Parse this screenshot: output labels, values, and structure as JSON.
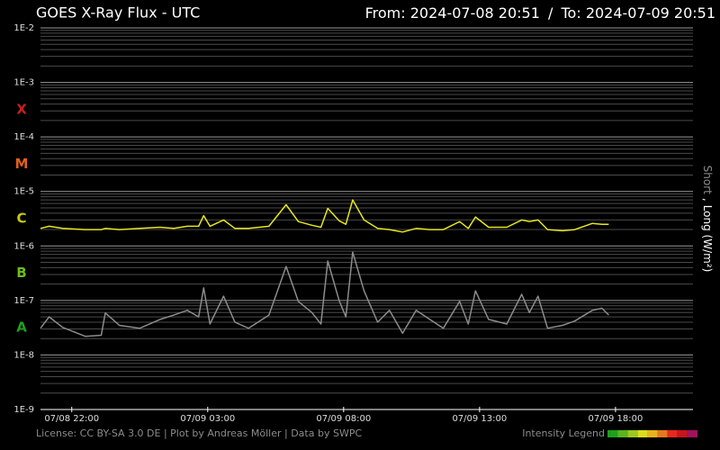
{
  "chart_data": {
    "type": "line",
    "title": "GOES X-Ray Flux - UTC",
    "from_label": "From:",
    "to_label": "To:",
    "range_separator": "/",
    "xlim": [
      "2024-07-08 20:51",
      "2024-07-09 20:51"
    ],
    "xticks": [
      {
        "value": "2024-07-08 22:00",
        "label": "07/08 22:00"
      },
      {
        "value": "2024-07-09 03:00",
        "label": "07/09 03:00"
      },
      {
        "value": "2024-07-09 08:00",
        "label": "07/09 08:00"
      },
      {
        "value": "2024-07-09 13:00",
        "label": "07/09 13:00"
      },
      {
        "value": "2024-07-09 18:00",
        "label": "07/09 18:00"
      }
    ],
    "log_scale": true,
    "grid": true,
    "ylim": [
      1e-09,
      0.01
    ],
    "yticks": [
      {
        "value": 1e-09,
        "label": "1E-9"
      },
      {
        "value": 1e-08,
        "label": "1E-8"
      },
      {
        "value": 1e-07,
        "label": "1E-7"
      },
      {
        "value": 1e-06,
        "label": "1E-6"
      },
      {
        "value": 1e-05,
        "label": "1E-5"
      },
      {
        "value": 0.0001,
        "label": "1E-4"
      },
      {
        "value": 0.001,
        "label": "1E-3"
      },
      {
        "value": 0.01,
        "label": "1E-2"
      }
    ],
    "flare_classes": [
      {
        "label": "A",
        "color": "#1fa01f"
      },
      {
        "label": "B",
        "color": "#6cbc1c"
      },
      {
        "label": "C",
        "color": "#c8c81c"
      },
      {
        "label": "M",
        "color": "#e0601a"
      },
      {
        "label": "X",
        "color": "#c81e1e"
      }
    ],
    "legend_separator": ",",
    "x": [
      "2024-07-08 20:51",
      "2024-07-08 21:10",
      "2024-07-08 21:40",
      "2024-07-08 22:30",
      "2024-07-08 23:05",
      "2024-07-08 23:14",
      "2024-07-08 23:45",
      "2024-07-09 00:30",
      "2024-07-09 01:15",
      "2024-07-09 01:45",
      "2024-07-09 02:15",
      "2024-07-09 02:40",
      "2024-07-09 02:51",
      "2024-07-09 03:05",
      "2024-07-09 03:35",
      "2024-07-09 04:00",
      "2024-07-09 04:30",
      "2024-07-09 05:15",
      "2024-07-09 05:53",
      "2024-07-09 06:20",
      "2024-07-09 06:50",
      "2024-07-09 07:10",
      "2024-07-09 07:25",
      "2024-07-09 07:50",
      "2024-07-09 08:05",
      "2024-07-09 08:20",
      "2024-07-09 08:45",
      "2024-07-09 09:15",
      "2024-07-09 09:41",
      "2024-07-09 10:10",
      "2024-07-09 10:40",
      "2024-07-09 11:10",
      "2024-07-09 11:40",
      "2024-07-09 12:16",
      "2024-07-09 12:35",
      "2024-07-09 12:51",
      "2024-07-09 13:20",
      "2024-07-09 14:00",
      "2024-07-09 14:33",
      "2024-07-09 14:50",
      "2024-07-09 15:09",
      "2024-07-09 15:30",
      "2024-07-09 16:03",
      "2024-07-09 16:30",
      "2024-07-09 17:09",
      "2024-07-09 17:30",
      "2024-07-09 17:45"
    ],
    "series": [
      {
        "name": "Short",
        "color": "#8c8c8c",
        "values": [
          3.1e-08,
          5e-08,
          3.2e-08,
          2.2e-08,
          2.3e-08,
          5.9e-08,
          3.5e-08,
          3.1e-08,
          4.5e-08,
          5.4e-08,
          6.6e-08,
          5e-08,
          1.7e-07,
          3.7e-08,
          1.2e-07,
          4e-08,
          3.1e-08,
          5.4e-08,
          4.2e-07,
          9.6e-08,
          6e-08,
          3.7e-08,
          5.3e-07,
          1e-07,
          5e-08,
          7.7e-07,
          1.5e-07,
          4e-08,
          6.6e-08,
          2.5e-08,
          6.6e-08,
          4.5e-08,
          3.1e-08,
          9.6e-08,
          3.7e-08,
          1.5e-07,
          4.5e-08,
          3.7e-08,
          1.3e-07,
          6e-08,
          1.2e-07,
          3.1e-08,
          3.5e-08,
          4.2e-08,
          6.6e-08,
          7.2e-08,
          5.4e-08
        ]
      },
      {
        "name": "Long (W/m²)",
        "color": "#e6e61e",
        "values": [
          2.1e-06,
          2.3e-06,
          2.1e-06,
          2e-06,
          2e-06,
          2.1e-06,
          2e-06,
          2.1e-06,
          2.2e-06,
          2.1e-06,
          2.3e-06,
          2.3e-06,
          3.6e-06,
          2.3e-06,
          3e-06,
          2.1e-06,
          2.1e-06,
          2.3e-06,
          5.7e-06,
          2.8e-06,
          2.4e-06,
          2.2e-06,
          4.9e-06,
          2.9e-06,
          2.5e-06,
          7e-06,
          3e-06,
          2.1e-06,
          2e-06,
          1.8e-06,
          2.1e-06,
          2e-06,
          2e-06,
          2.8e-06,
          2.1e-06,
          3.4e-06,
          2.2e-06,
          2.2e-06,
          3e-06,
          2.8e-06,
          3e-06,
          2e-06,
          1.9e-06,
          2e-06,
          2.6e-06,
          2.5e-06,
          2.5e-06
        ]
      }
    ],
    "footer": "License: CC BY-SA 3.0 DE | Plot by Andreas Möller | Data by SWPC",
    "intensity_legend": {
      "label": "Intensity Legend",
      "colors": [
        "#1ea01e",
        "#5ab41e",
        "#9cc81e",
        "#dcdc1e",
        "#e6b41e",
        "#e6781e",
        "#e6281e",
        "#c8141e",
        "#a0145a"
      ]
    }
  }
}
